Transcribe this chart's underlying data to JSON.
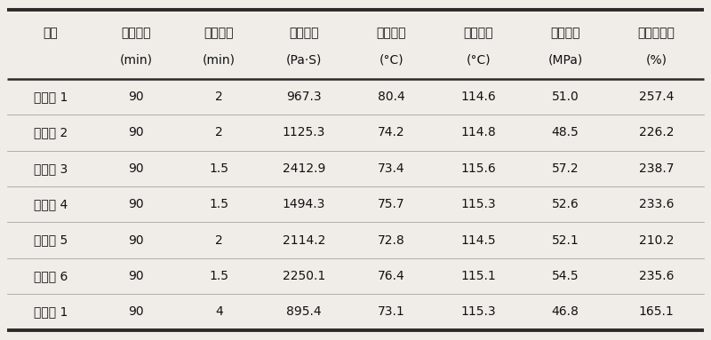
{
  "headers_line1": [
    "样品",
    "酯化时间",
    "聚合时间",
    "零切粘度",
    "结晶温度",
    "熔融温度",
    "拉伸强度",
    "断裂伸长率"
  ],
  "headers_line2": [
    "",
    "(min)",
    "(min)",
    "(Pa·S)",
    "(°C)",
    "(°C)",
    "(MPa)",
    "(%)"
  ],
  "rows": [
    [
      "实施例 1",
      "90",
      "2",
      "967.3",
      "80.4",
      "114.6",
      "51.0",
      "257.4"
    ],
    [
      "实施例 2",
      "90",
      "2",
      "1125.3",
      "74.2",
      "114.8",
      "48.5",
      "226.2"
    ],
    [
      "实施例 3",
      "90",
      "1.5",
      "2412.9",
      "73.4",
      "115.6",
      "57.2",
      "238.7"
    ],
    [
      "实施例 4",
      "90",
      "1.5",
      "1494.3",
      "75.7",
      "115.3",
      "52.6",
      "233.6"
    ],
    [
      "实施例 5",
      "90",
      "2",
      "2114.2",
      "72.8",
      "114.5",
      "52.1",
      "210.2"
    ],
    [
      "实施例 6",
      "90",
      "1.5",
      "2250.1",
      "76.4",
      "115.1",
      "54.5",
      "235.6"
    ],
    [
      "比较例 1",
      "90",
      "4",
      "895.4",
      "73.1",
      "115.3",
      "46.8",
      "165.1"
    ]
  ],
  "col_widths_rel": [
    1.1,
    1.05,
    1.05,
    1.1,
    1.1,
    1.1,
    1.1,
    1.2
  ],
  "background_color": "#f0ede8",
  "border_color": "#2a2a2a",
  "text_color": "#111111",
  "font_size": 10,
  "header_font_size": 10,
  "thick_lw": 2.8,
  "mid_lw": 1.8,
  "thin_lw": 0.5
}
